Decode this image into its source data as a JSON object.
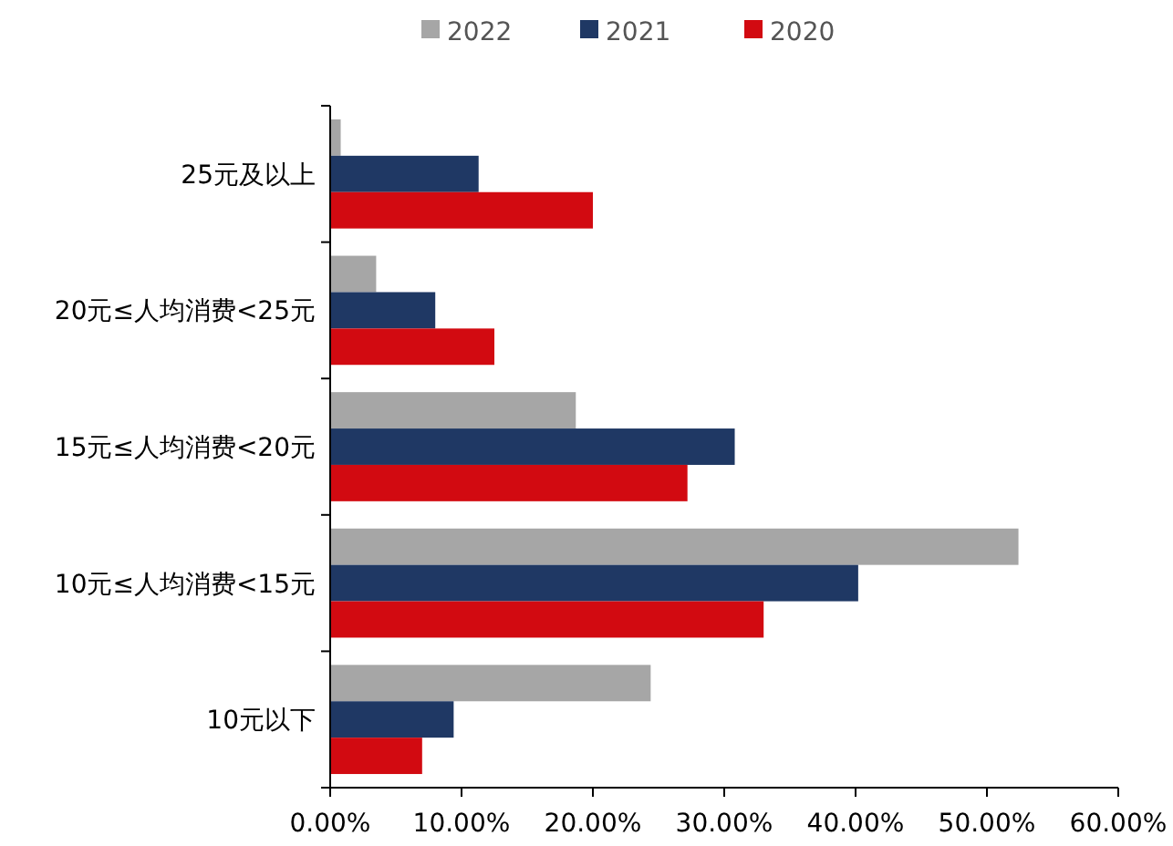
{
  "chart_data": {
    "type": "bar",
    "orientation": "horizontal",
    "legend": "top",
    "grid": false,
    "categories": [
      "25元及以上",
      "20元≤人均消费<25元",
      "15元≤人均消费<20元",
      "10元≤人均消费<15元",
      "10元以下"
    ],
    "series": [
      {
        "name": "2022",
        "color": "#a6a6a6",
        "values": [
          0.8,
          3.5,
          18.7,
          52.4,
          24.4
        ]
      },
      {
        "name": "2021",
        "color": "#1f3864",
        "values": [
          11.3,
          8.0,
          30.8,
          40.2,
          9.4
        ]
      },
      {
        "name": "2020",
        "color": "#d20a11",
        "values": [
          20.0,
          12.5,
          27.2,
          33.0,
          7.0
        ]
      }
    ],
    "xlim": [
      0,
      60
    ],
    "xticks": [
      {
        "value": 0,
        "label": "0.00%"
      },
      {
        "value": 10,
        "label": "10.00%"
      },
      {
        "value": 20,
        "label": "20.00%"
      },
      {
        "value": 30,
        "label": "30.00%"
      },
      {
        "value": 40,
        "label": "40.00%"
      },
      {
        "value": 50,
        "label": "50.00%"
      },
      {
        "value": 60,
        "label": "60.00%"
      }
    ]
  }
}
